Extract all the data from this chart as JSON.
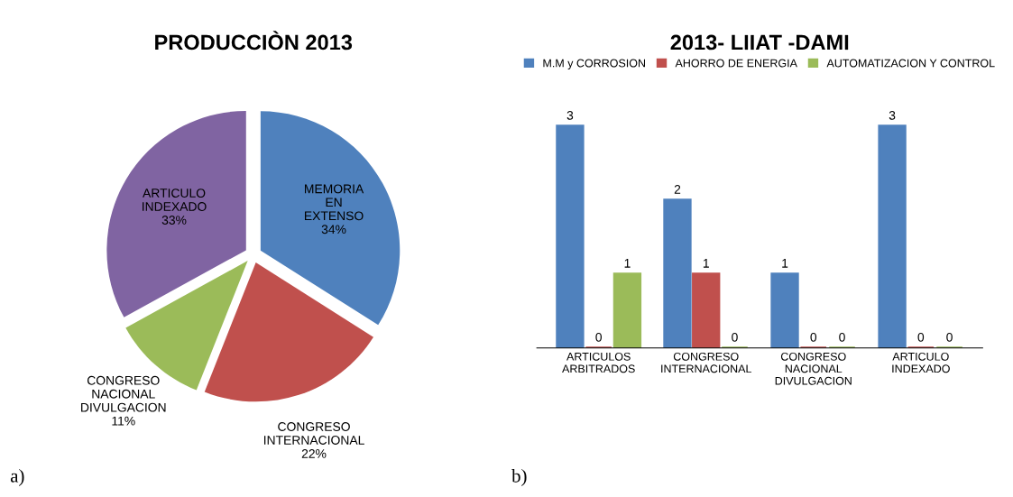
{
  "chart_data": [
    {
      "type": "pie",
      "title": "PRODUCCIÒN 2013",
      "categories": [
        "MEMORIA EN EXTENSO",
        "CONGRESO INTERNACIONAL",
        "CONGRESO NACIONAL DIVULGACION",
        "ARTICULO INDEXADO"
      ],
      "values": [
        34,
        22,
        11,
        33
      ],
      "value_labels": [
        "34%",
        "22%",
        "11%",
        "33%"
      ],
      "colors": [
        "#4f81bd",
        "#c0504d",
        "#9bbb59",
        "#8064a2"
      ],
      "annotations": [
        "a)"
      ]
    },
    {
      "type": "bar",
      "title": "2013- LIIAT -DAMI",
      "categories": [
        "ARTICULOS ARBITRADOS",
        "CONGRESO INTERNACIONAL",
        "CONGRESO NACIONAL DIVULGACION",
        "ARTICULO INDEXADO"
      ],
      "series": [
        {
          "name": "M.M y CORROSION",
          "color": "#4f81bd",
          "values": [
            3,
            2,
            1,
            3
          ]
        },
        {
          "name": "AHORRO DE ENERGIA",
          "color": "#c0504d",
          "values": [
            0,
            1,
            0,
            0
          ]
        },
        {
          "name": "AUTOMATIZACION Y CONTROL",
          "color": "#9bbb59",
          "values": [
            1,
            0,
            0,
            0
          ]
        }
      ],
      "tick_labels": "x",
      "data_labels": true,
      "legend": "top",
      "grid": false,
      "annotations": [
        "b)"
      ]
    }
  ]
}
